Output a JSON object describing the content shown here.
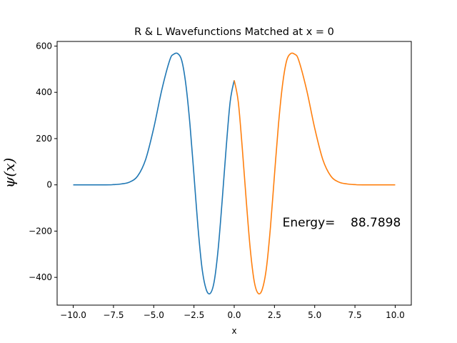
{
  "chart_data": {
    "type": "line",
    "title": "R & L Wavefunctions Matched at x = 0",
    "xlabel": "x",
    "ylabel": "ψ(x)",
    "xlim": [
      -11.0,
      11.0
    ],
    "ylim": [
      -520,
      620
    ],
    "xticks": [
      -10.0,
      -7.5,
      -5.0,
      -2.5,
      0.0,
      2.5,
      5.0,
      7.5,
      10.0
    ],
    "xtick_labels": [
      "−10.0",
      "−7.5",
      "−5.0",
      "−2.5",
      "0.0",
      "2.5",
      "5.0",
      "7.5",
      "10.0"
    ],
    "yticks": [
      -400,
      -200,
      0,
      200,
      400,
      600
    ],
    "ytick_labels": [
      "−400",
      "−200",
      "0",
      "200",
      "400",
      "600"
    ],
    "grid": false,
    "annotation": {
      "text": "Energy=    88.7898",
      "x": 3.0,
      "y": -180
    },
    "series": [
      {
        "color": "#1f77b4",
        "x": [
          -10.0,
          -8.0,
          -7.5,
          -7.0,
          -6.5,
          -6.0,
          -5.5,
          -5.0,
          -4.5,
          -4.0,
          -3.75,
          -3.5,
          -3.25,
          -3.0,
          -2.75,
          -2.5,
          -2.25,
          -2.0,
          -1.75,
          -1.5,
          -1.25,
          -1.0,
          -0.75,
          -0.5,
          -0.25,
          0.0
        ],
        "y": [
          0,
          0,
          1,
          4,
          12,
          38,
          110,
          245,
          410,
          540,
          565,
          567,
          535,
          432,
          262,
          42,
          -184,
          -360,
          -450,
          -470,
          -420,
          -280,
          -70,
          160,
          360,
          452
        ]
      },
      {
        "color": "#ff7f0e",
        "x": [
          0.0,
          0.25,
          0.5,
          0.75,
          1.0,
          1.25,
          1.5,
          1.75,
          2.0,
          2.25,
          2.5,
          2.75,
          3.0,
          3.25,
          3.5,
          3.75,
          4.0,
          4.5,
          5.0,
          5.5,
          6.0,
          6.5,
          7.0,
          7.5,
          8.0,
          10.0
        ],
        "y": [
          452,
          360,
          160,
          -70,
          -280,
          -420,
          -470,
          -450,
          -360,
          -184,
          42,
          262,
          432,
          535,
          567,
          565,
          540,
          410,
          245,
          110,
          38,
          12,
          4,
          1,
          0,
          0
        ]
      }
    ]
  }
}
